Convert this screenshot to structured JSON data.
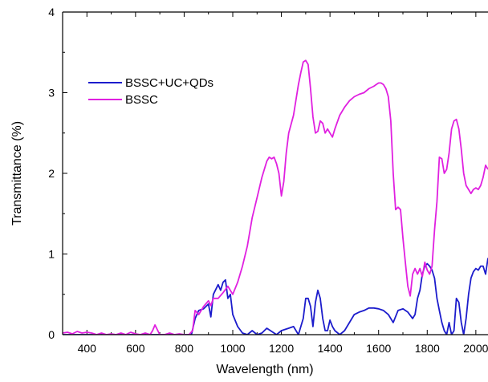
{
  "chart_data": {
    "type": "line",
    "title": "",
    "xlabel": "Wavelength (nm)",
    "ylabel": "Transmittance (%)",
    "xlim": [
      300,
      2050
    ],
    "ylim": [
      0,
      4
    ],
    "x_ticks": [
      400,
      600,
      800,
      1000,
      1200,
      1400,
      1600,
      1800,
      2000
    ],
    "y_ticks": [
      0,
      1,
      2,
      3,
      4
    ],
    "x_tick_labels": [
      "400",
      "600",
      "800",
      "1000",
      "1200",
      "1400",
      "1600",
      "1800",
      "2000"
    ],
    "y_tick_labels": [
      "0",
      "1",
      "2",
      "3",
      "4"
    ],
    "grid": false,
    "legend_position": "top-left",
    "series": [
      {
        "name": "BSSC+UC+QDs",
        "color": "#1c1ccc",
        "points": [
          [
            300,
            0.0
          ],
          [
            500,
            0.0
          ],
          [
            700,
            0.0
          ],
          [
            830,
            0.0
          ],
          [
            845,
            0.2
          ],
          [
            860,
            0.3
          ],
          [
            880,
            0.32
          ],
          [
            900,
            0.38
          ],
          [
            910,
            0.22
          ],
          [
            920,
            0.5
          ],
          [
            940,
            0.62
          ],
          [
            950,
            0.55
          ],
          [
            960,
            0.65
          ],
          [
            970,
            0.68
          ],
          [
            980,
            0.45
          ],
          [
            990,
            0.5
          ],
          [
            1000,
            0.25
          ],
          [
            1020,
            0.1
          ],
          [
            1040,
            0.02
          ],
          [
            1060,
            0.0
          ],
          [
            1080,
            0.05
          ],
          [
            1100,
            0.0
          ],
          [
            1120,
            0.02
          ],
          [
            1140,
            0.08
          ],
          [
            1160,
            0.04
          ],
          [
            1180,
            0.0
          ],
          [
            1200,
            0.05
          ],
          [
            1230,
            0.08
          ],
          [
            1250,
            0.1
          ],
          [
            1270,
            0.0
          ],
          [
            1290,
            0.2
          ],
          [
            1300,
            0.45
          ],
          [
            1310,
            0.45
          ],
          [
            1320,
            0.35
          ],
          [
            1330,
            0.1
          ],
          [
            1340,
            0.4
          ],
          [
            1350,
            0.55
          ],
          [
            1360,
            0.45
          ],
          [
            1370,
            0.2
          ],
          [
            1380,
            0.05
          ],
          [
            1390,
            0.05
          ],
          [
            1400,
            0.18
          ],
          [
            1410,
            0.1
          ],
          [
            1420,
            0.05
          ],
          [
            1440,
            0.0
          ],
          [
            1460,
            0.05
          ],
          [
            1480,
            0.15
          ],
          [
            1500,
            0.25
          ],
          [
            1520,
            0.28
          ],
          [
            1540,
            0.3
          ],
          [
            1560,
            0.33
          ],
          [
            1580,
            0.33
          ],
          [
            1600,
            0.32
          ],
          [
            1620,
            0.3
          ],
          [
            1640,
            0.25
          ],
          [
            1660,
            0.15
          ],
          [
            1680,
            0.3
          ],
          [
            1700,
            0.32
          ],
          [
            1720,
            0.28
          ],
          [
            1740,
            0.2
          ],
          [
            1750,
            0.25
          ],
          [
            1760,
            0.45
          ],
          [
            1770,
            0.55
          ],
          [
            1780,
            0.75
          ],
          [
            1790,
            0.85
          ],
          [
            1800,
            0.88
          ],
          [
            1810,
            0.85
          ],
          [
            1820,
            0.8
          ],
          [
            1830,
            0.7
          ],
          [
            1840,
            0.45
          ],
          [
            1850,
            0.3
          ],
          [
            1860,
            0.15
          ],
          [
            1870,
            0.05
          ],
          [
            1880,
            0.0
          ],
          [
            1890,
            0.15
          ],
          [
            1900,
            0.0
          ],
          [
            1910,
            0.05
          ],
          [
            1920,
            0.45
          ],
          [
            1930,
            0.4
          ],
          [
            1940,
            0.15
          ],
          [
            1950,
            0.0
          ],
          [
            1960,
            0.2
          ],
          [
            1970,
            0.5
          ],
          [
            1980,
            0.7
          ],
          [
            1990,
            0.78
          ],
          [
            2000,
            0.82
          ],
          [
            2010,
            0.8
          ],
          [
            2020,
            0.85
          ],
          [
            2030,
            0.85
          ],
          [
            2040,
            0.75
          ],
          [
            2050,
            0.95
          ]
        ]
      },
      {
        "name": "BSSC",
        "color": "#e020e0",
        "points": [
          [
            300,
            0.02
          ],
          [
            320,
            0.03
          ],
          [
            340,
            0.01
          ],
          [
            360,
            0.04
          ],
          [
            380,
            0.02
          ],
          [
            400,
            0.03
          ],
          [
            420,
            0.02
          ],
          [
            440,
            0.0
          ],
          [
            460,
            0.02
          ],
          [
            480,
            0.0
          ],
          [
            500,
            0.01
          ],
          [
            520,
            0.0
          ],
          [
            540,
            0.02
          ],
          [
            560,
            0.0
          ],
          [
            580,
            0.03
          ],
          [
            600,
            0.01
          ],
          [
            620,
            0.0
          ],
          [
            640,
            0.02
          ],
          [
            660,
            0.0
          ],
          [
            670,
            0.05
          ],
          [
            680,
            0.12
          ],
          [
            690,
            0.06
          ],
          [
            700,
            0.0
          ],
          [
            720,
            0.0
          ],
          [
            740,
            0.02
          ],
          [
            760,
            0.0
          ],
          [
            780,
            0.01
          ],
          [
            800,
            0.0
          ],
          [
            820,
            0.0
          ],
          [
            835,
            0.05
          ],
          [
            845,
            0.3
          ],
          [
            860,
            0.25
          ],
          [
            880,
            0.35
          ],
          [
            900,
            0.42
          ],
          [
            910,
            0.36
          ],
          [
            920,
            0.45
          ],
          [
            940,
            0.45
          ],
          [
            960,
            0.52
          ],
          [
            980,
            0.6
          ],
          [
            1000,
            0.5
          ],
          [
            1020,
            0.65
          ],
          [
            1040,
            0.85
          ],
          [
            1060,
            1.1
          ],
          [
            1080,
            1.45
          ],
          [
            1100,
            1.7
          ],
          [
            1120,
            1.95
          ],
          [
            1140,
            2.15
          ],
          [
            1150,
            2.2
          ],
          [
            1160,
            2.18
          ],
          [
            1170,
            2.2
          ],
          [
            1180,
            2.12
          ],
          [
            1190,
            2.0
          ],
          [
            1200,
            1.72
          ],
          [
            1210,
            1.9
          ],
          [
            1220,
            2.25
          ],
          [
            1230,
            2.5
          ],
          [
            1250,
            2.72
          ],
          [
            1270,
            3.1
          ],
          [
            1280,
            3.25
          ],
          [
            1290,
            3.38
          ],
          [
            1300,
            3.4
          ],
          [
            1310,
            3.35
          ],
          [
            1320,
            3.05
          ],
          [
            1330,
            2.7
          ],
          [
            1340,
            2.5
          ],
          [
            1350,
            2.52
          ],
          [
            1360,
            2.65
          ],
          [
            1370,
            2.62
          ],
          [
            1380,
            2.5
          ],
          [
            1390,
            2.55
          ],
          [
            1400,
            2.5
          ],
          [
            1410,
            2.45
          ],
          [
            1420,
            2.55
          ],
          [
            1440,
            2.72
          ],
          [
            1460,
            2.82
          ],
          [
            1480,
            2.9
          ],
          [
            1500,
            2.95
          ],
          [
            1520,
            2.98
          ],
          [
            1540,
            3.0
          ],
          [
            1560,
            3.05
          ],
          [
            1580,
            3.08
          ],
          [
            1590,
            3.1
          ],
          [
            1600,
            3.12
          ],
          [
            1610,
            3.12
          ],
          [
            1620,
            3.1
          ],
          [
            1630,
            3.05
          ],
          [
            1640,
            2.95
          ],
          [
            1650,
            2.65
          ],
          [
            1660,
            2.0
          ],
          [
            1670,
            1.55
          ],
          [
            1680,
            1.58
          ],
          [
            1690,
            1.55
          ],
          [
            1700,
            1.2
          ],
          [
            1710,
            0.9
          ],
          [
            1720,
            0.6
          ],
          [
            1730,
            0.48
          ],
          [
            1740,
            0.75
          ],
          [
            1750,
            0.82
          ],
          [
            1760,
            0.75
          ],
          [
            1770,
            0.82
          ],
          [
            1780,
            0.72
          ],
          [
            1790,
            0.9
          ],
          [
            1800,
            0.8
          ],
          [
            1810,
            0.75
          ],
          [
            1820,
            0.85
          ],
          [
            1830,
            1.3
          ],
          [
            1840,
            1.65
          ],
          [
            1850,
            2.2
          ],
          [
            1860,
            2.18
          ],
          [
            1870,
            2.0
          ],
          [
            1880,
            2.05
          ],
          [
            1890,
            2.25
          ],
          [
            1900,
            2.55
          ],
          [
            1910,
            2.65
          ],
          [
            1920,
            2.67
          ],
          [
            1930,
            2.55
          ],
          [
            1940,
            2.3
          ],
          [
            1950,
            2.0
          ],
          [
            1960,
            1.85
          ],
          [
            1970,
            1.8
          ],
          [
            1980,
            1.75
          ],
          [
            1990,
            1.8
          ],
          [
            2000,
            1.82
          ],
          [
            2010,
            1.8
          ],
          [
            2020,
            1.85
          ],
          [
            2030,
            1.95
          ],
          [
            2040,
            2.1
          ],
          [
            2050,
            2.05
          ]
        ]
      }
    ]
  }
}
